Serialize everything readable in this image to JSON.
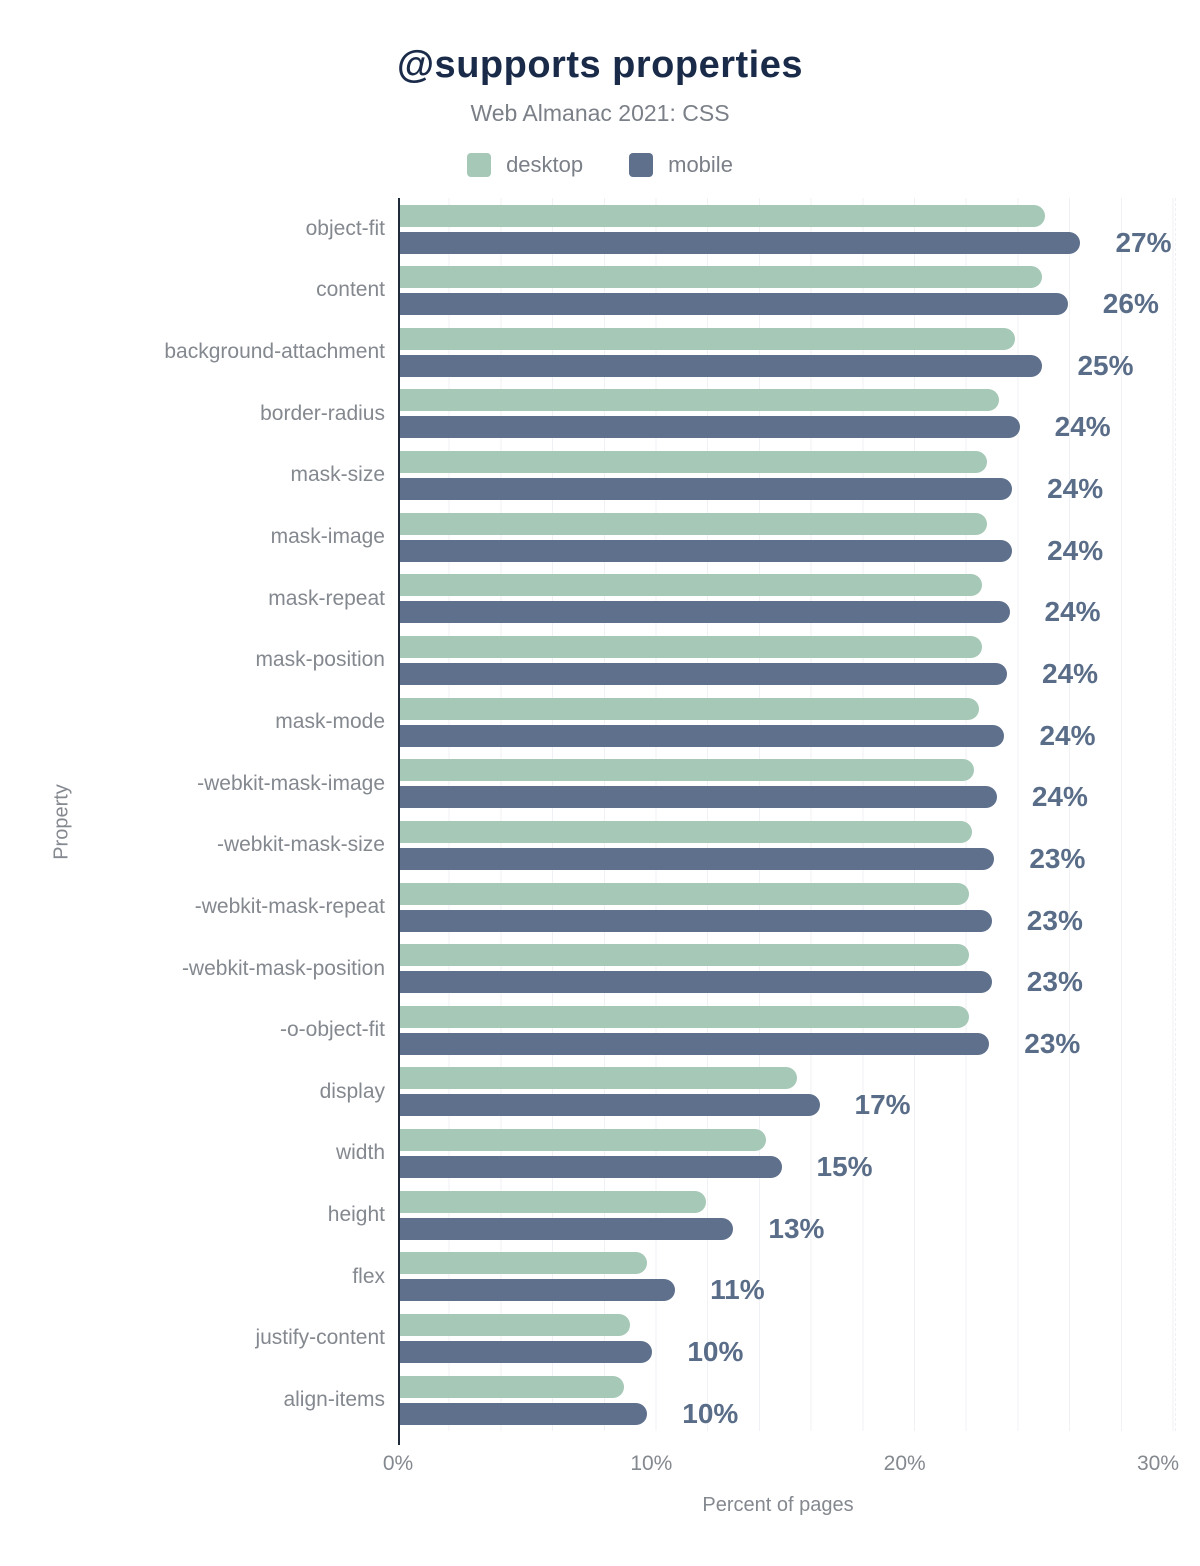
{
  "header": {
    "title": "@supports properties",
    "subtitle": "Web Almanac 2021: CSS"
  },
  "legend": [
    {
      "label": "desktop",
      "color": "#a6c8b7"
    },
    {
      "label": "mobile",
      "color": "#5e708c"
    }
  ],
  "chart_data": {
    "type": "bar",
    "orientation": "horizontal",
    "title": "@supports properties",
    "subtitle": "Web Almanac 2021: CSS",
    "xlabel": "Percent of pages",
    "ylabel": "Property",
    "xlim": [
      0,
      30
    ],
    "x_ticks": [
      "0%",
      "10%",
      "20%",
      "30%"
    ],
    "x_tick_values": [
      0,
      10,
      20,
      30
    ],
    "grid": "vertical-minor",
    "legend_position": "top-center",
    "categories": [
      "object-fit",
      "content",
      "background-attachment",
      "border-radius",
      "mask-size",
      "mask-image",
      "mask-repeat",
      "mask-position",
      "mask-mode",
      "-webkit-mask-image",
      "-webkit-mask-size",
      "-webkit-mask-repeat",
      "-webkit-mask-position",
      "-o-object-fit",
      "display",
      "width",
      "height",
      "flex",
      "justify-content",
      "align-items"
    ],
    "series": [
      {
        "name": "desktop",
        "color": "#a6c8b7",
        "values": [
          25.5,
          25.4,
          24.3,
          23.7,
          23.2,
          23.2,
          23.0,
          23.0,
          22.9,
          22.7,
          22.6,
          22.5,
          22.5,
          22.5,
          15.7,
          14.5,
          12.1,
          9.8,
          9.1,
          8.9
        ]
      },
      {
        "name": "mobile",
        "color": "#5e708c",
        "values": [
          26.9,
          26.4,
          25.4,
          24.5,
          24.2,
          24.2,
          24.1,
          24.0,
          23.9,
          23.6,
          23.5,
          23.4,
          23.4,
          23.3,
          16.6,
          15.1,
          13.2,
          10.9,
          10.0,
          9.8
        ]
      }
    ],
    "value_labels": [
      "27%",
      "26%",
      "25%",
      "24%",
      "24%",
      "24%",
      "24%",
      "24%",
      "24%",
      "24%",
      "23%",
      "23%",
      "23%",
      "23%",
      "17%",
      "15%",
      "13%",
      "11%",
      "10%",
      "10%"
    ]
  },
  "colors": {
    "title": "#1a2b49",
    "axis_line": "#1f2a3a",
    "value_label": "#5a6d88",
    "tick_label": "#84888f",
    "gridline": "#f0f1f5"
  }
}
